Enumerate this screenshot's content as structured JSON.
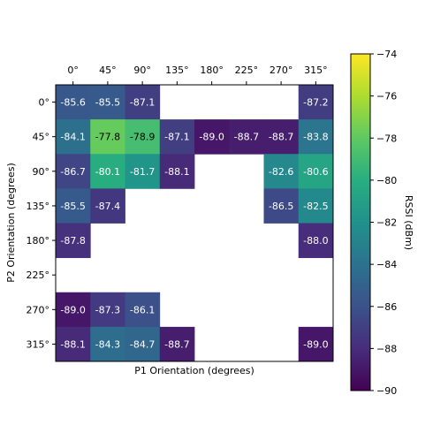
{
  "chart_data": {
    "type": "heatmap",
    "x_categories": [
      "0°",
      "45°",
      "90°",
      "135°",
      "180°",
      "225°",
      "270°",
      "315°"
    ],
    "y_categories": [
      "0°",
      "45°",
      "90°",
      "135°",
      "180°",
      "225°",
      "270°",
      "315°"
    ],
    "xlabel": "P1 Orientation (degrees)",
    "ylabel": "P2 Orientation (degrees)",
    "x_axis_position": "top",
    "values": [
      [
        -85.6,
        -85.5,
        -87.1,
        null,
        null,
        null,
        null,
        -87.2
      ],
      [
        -84.1,
        -77.8,
        -78.9,
        -87.1,
        -89.0,
        -88.7,
        -88.7,
        -83.8
      ],
      [
        -86.7,
        -80.1,
        -81.7,
        -88.1,
        null,
        null,
        -82.6,
        -80.6
      ],
      [
        -85.5,
        -87.4,
        null,
        null,
        null,
        null,
        -86.5,
        -82.5
      ],
      [
        -87.8,
        null,
        null,
        null,
        null,
        null,
        null,
        -88.0
      ],
      [
        null,
        null,
        null,
        null,
        null,
        null,
        null,
        null
      ],
      [
        -89.0,
        -87.3,
        -86.1,
        null,
        null,
        null,
        null,
        null
      ],
      [
        -88.1,
        -84.3,
        -84.7,
        -88.7,
        null,
        null,
        null,
        -89.0
      ]
    ],
    "colorbar": {
      "label": "RSSI (dBm)",
      "range": [
        -90,
        -74
      ],
      "ticks": [
        "−74",
        "−76",
        "−78",
        "−80",
        "−82",
        "−84",
        "−86",
        "−88",
        "−90"
      ],
      "colormap": "viridis"
    }
  }
}
